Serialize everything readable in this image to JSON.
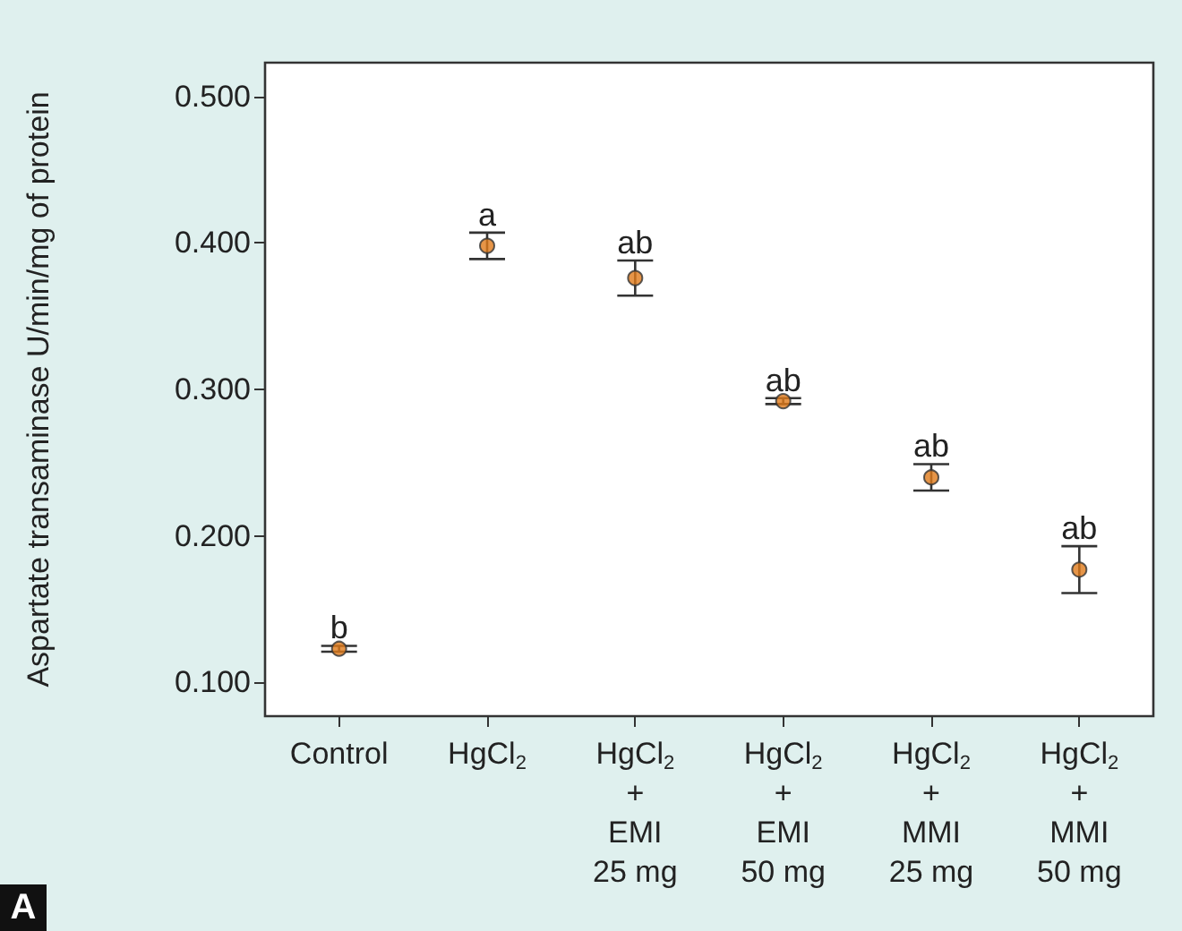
{
  "chart_data": {
    "type": "scatter",
    "ylabel": "Aspartate transaminase U/min/mg of protein",
    "categories": [
      "Control",
      "HgCl$_{2}$",
      "HgCl$_{2}$\n+\nEMI\n25 mg",
      "HgCl$_{2}$\n+\nEMI\n50 mg",
      "HgCl$_{2}$\n+\nMMI\n25 mg",
      "HgCl$_{2}$\n+\nMMI\n50 mg"
    ],
    "values": [
      0.123,
      0.398,
      0.376,
      0.292,
      0.24,
      0.177
    ],
    "errors": [
      0.002,
      0.009,
      0.012,
      0.002,
      0.009,
      0.016
    ],
    "value_labels": [
      "b",
      "a",
      "ab",
      "ab",
      "ab",
      "ab"
    ],
    "color": "#e07b1a",
    "marker": "circle",
    "grid": false,
    "ylim": [
      0.077,
      0.523
    ],
    "yticks": [
      {
        "value": 0.1,
        "label": "0.100"
      },
      {
        "value": 0.2,
        "label": "0.200"
      },
      {
        "value": 0.3,
        "label": "0.300"
      },
      {
        "value": 0.4,
        "label": "0.400"
      },
      {
        "value": 0.5,
        "label": "0.500"
      }
    ],
    "annotations": [
      "A"
    ]
  }
}
